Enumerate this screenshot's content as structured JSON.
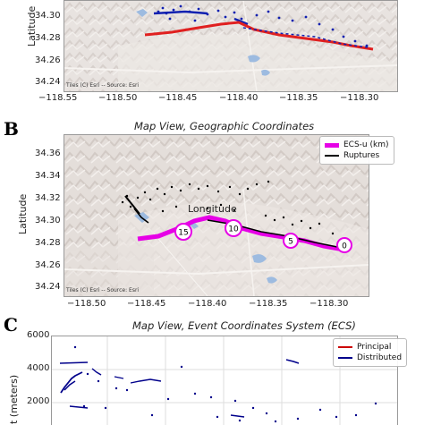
{
  "panels": [
    {
      "id": "A",
      "letter": "",
      "title": "",
      "ylabel": "Latitude",
      "xlabel": "",
      "attribution": "Tiles (C) Esri -- Source: Esri",
      "xticks": [
        "−118.55",
        "−118.50",
        "−118.45",
        "−118.40",
        "−118.35",
        "−118.30"
      ],
      "yticks": [
        "34.30",
        "34.28",
        "34.26",
        "34.24"
      ]
    },
    {
      "id": "B",
      "letter": "B",
      "title": "Map View, Geographic Coordinates",
      "ylabel": "Latitude",
      "xlabel": "Longitude",
      "attribution": "Tiles (C) Esri -- Source: Esri",
      "xticks": [
        "−118.50",
        "−118.45",
        "−118.40",
        "−118.35",
        "−118.30"
      ],
      "yticks": [
        "34.36",
        "34.34",
        "34.32",
        "34.30",
        "34.28",
        "34.26",
        "34.24"
      ],
      "legend": [
        {
          "label": "ECS-u (km)",
          "color": "#e600e6"
        },
        {
          "label": "Ruptures",
          "color": "#000000"
        }
      ],
      "ecs_markers": [
        "15",
        "10",
        "5",
        "0"
      ]
    },
    {
      "id": "C",
      "letter": "C",
      "title": "Map View, Event Coordinates System (ECS)",
      "ylabel": "t (meters)",
      "xlabel": "",
      "yticks": [
        "6000",
        "4000",
        "2000"
      ],
      "legend": [
        {
          "label": "Principal",
          "color": "#cc0000"
        },
        {
          "label": "Distributed",
          "color": "#00008b"
        }
      ]
    }
  ],
  "colors": {
    "terrain": "#d8cfc9",
    "water": "#9dbbe0",
    "principal": "#e02020",
    "distributed": "#1020b0",
    "ecs": "#e600e6"
  }
}
